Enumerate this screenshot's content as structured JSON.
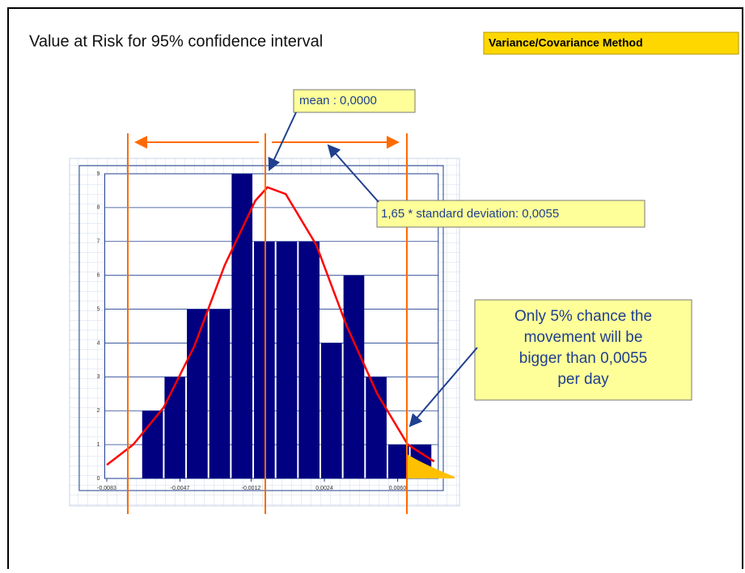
{
  "chart_data": {
    "type": "histogram",
    "title": "Value at Risk for 95% confidence interval",
    "method": "Variance/Covariance Method",
    "mean_label": "mean : 0,0000",
    "sd_label": "1,65 * standard deviation: 0,0055",
    "note_lines": [
      "Only 5% chance the",
      "movement will be",
      "bigger than 0,0055",
      "per day"
    ],
    "bins": [
      -0.0066,
      -0.0055,
      -0.0044,
      -0.0033,
      -0.0022,
      -0.0011,
      0.0,
      0.0011,
      0.0022,
      0.0033,
      0.0044,
      0.0055,
      0.0066,
      0.0077
    ],
    "values": [
      2,
      3,
      5,
      5,
      9,
      7,
      7,
      7,
      4,
      6,
      3,
      1,
      1
    ],
    "color": "#000080",
    "curve": {
      "color": "#ff0000",
      "x": [
        -0.0083,
        -0.007,
        -0.0055,
        -0.004,
        -0.0025,
        -0.001,
        -0.0004,
        0.0005,
        0.002,
        0.0035,
        0.005,
        0.0065,
        0.0078
      ],
      "y": [
        0.4,
        1.0,
        2.1,
        3.9,
        6.3,
        8.2,
        8.6,
        8.4,
        6.9,
        4.5,
        2.5,
        1.0,
        0.5
      ]
    },
    "xlim": [
      -0.0084,
      0.008
    ],
    "xticks": [
      {
        "value": -0.0083,
        "label": "-0,0083"
      },
      {
        "value": -0.0047,
        "label": "-0,0047"
      },
      {
        "value": -0.0012,
        "label": "-0,0012"
      },
      {
        "value": 0.0024,
        "label": "0,0024"
      },
      {
        "value": 0.006,
        "label": "0,0060"
      }
    ],
    "ylim": [
      0,
      9
    ],
    "yticks": [
      0,
      1,
      2,
      3,
      4,
      5,
      6,
      7,
      8,
      9
    ],
    "grid": true
  }
}
